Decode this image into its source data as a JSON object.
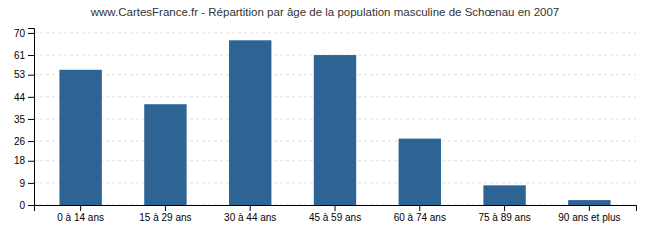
{
  "chart_data": {
    "type": "bar",
    "title": "www.CartesFrance.fr - Répartition par âge de la population masculine de Schœnau en 2007",
    "categories": [
      "0 à 14 ans",
      "15 à 29 ans",
      "30 à 44 ans",
      "45 à 59 ans",
      "60 à 74 ans",
      "75 à 89 ans",
      "90 ans et plus"
    ],
    "values": [
      55,
      41,
      67,
      61,
      27,
      8,
      2
    ],
    "color": "#2e6494",
    "ylim": [
      0,
      72
    ],
    "yticks": [
      0,
      9,
      18,
      26,
      35,
      44,
      53,
      61,
      70
    ],
    "grid": true
  }
}
